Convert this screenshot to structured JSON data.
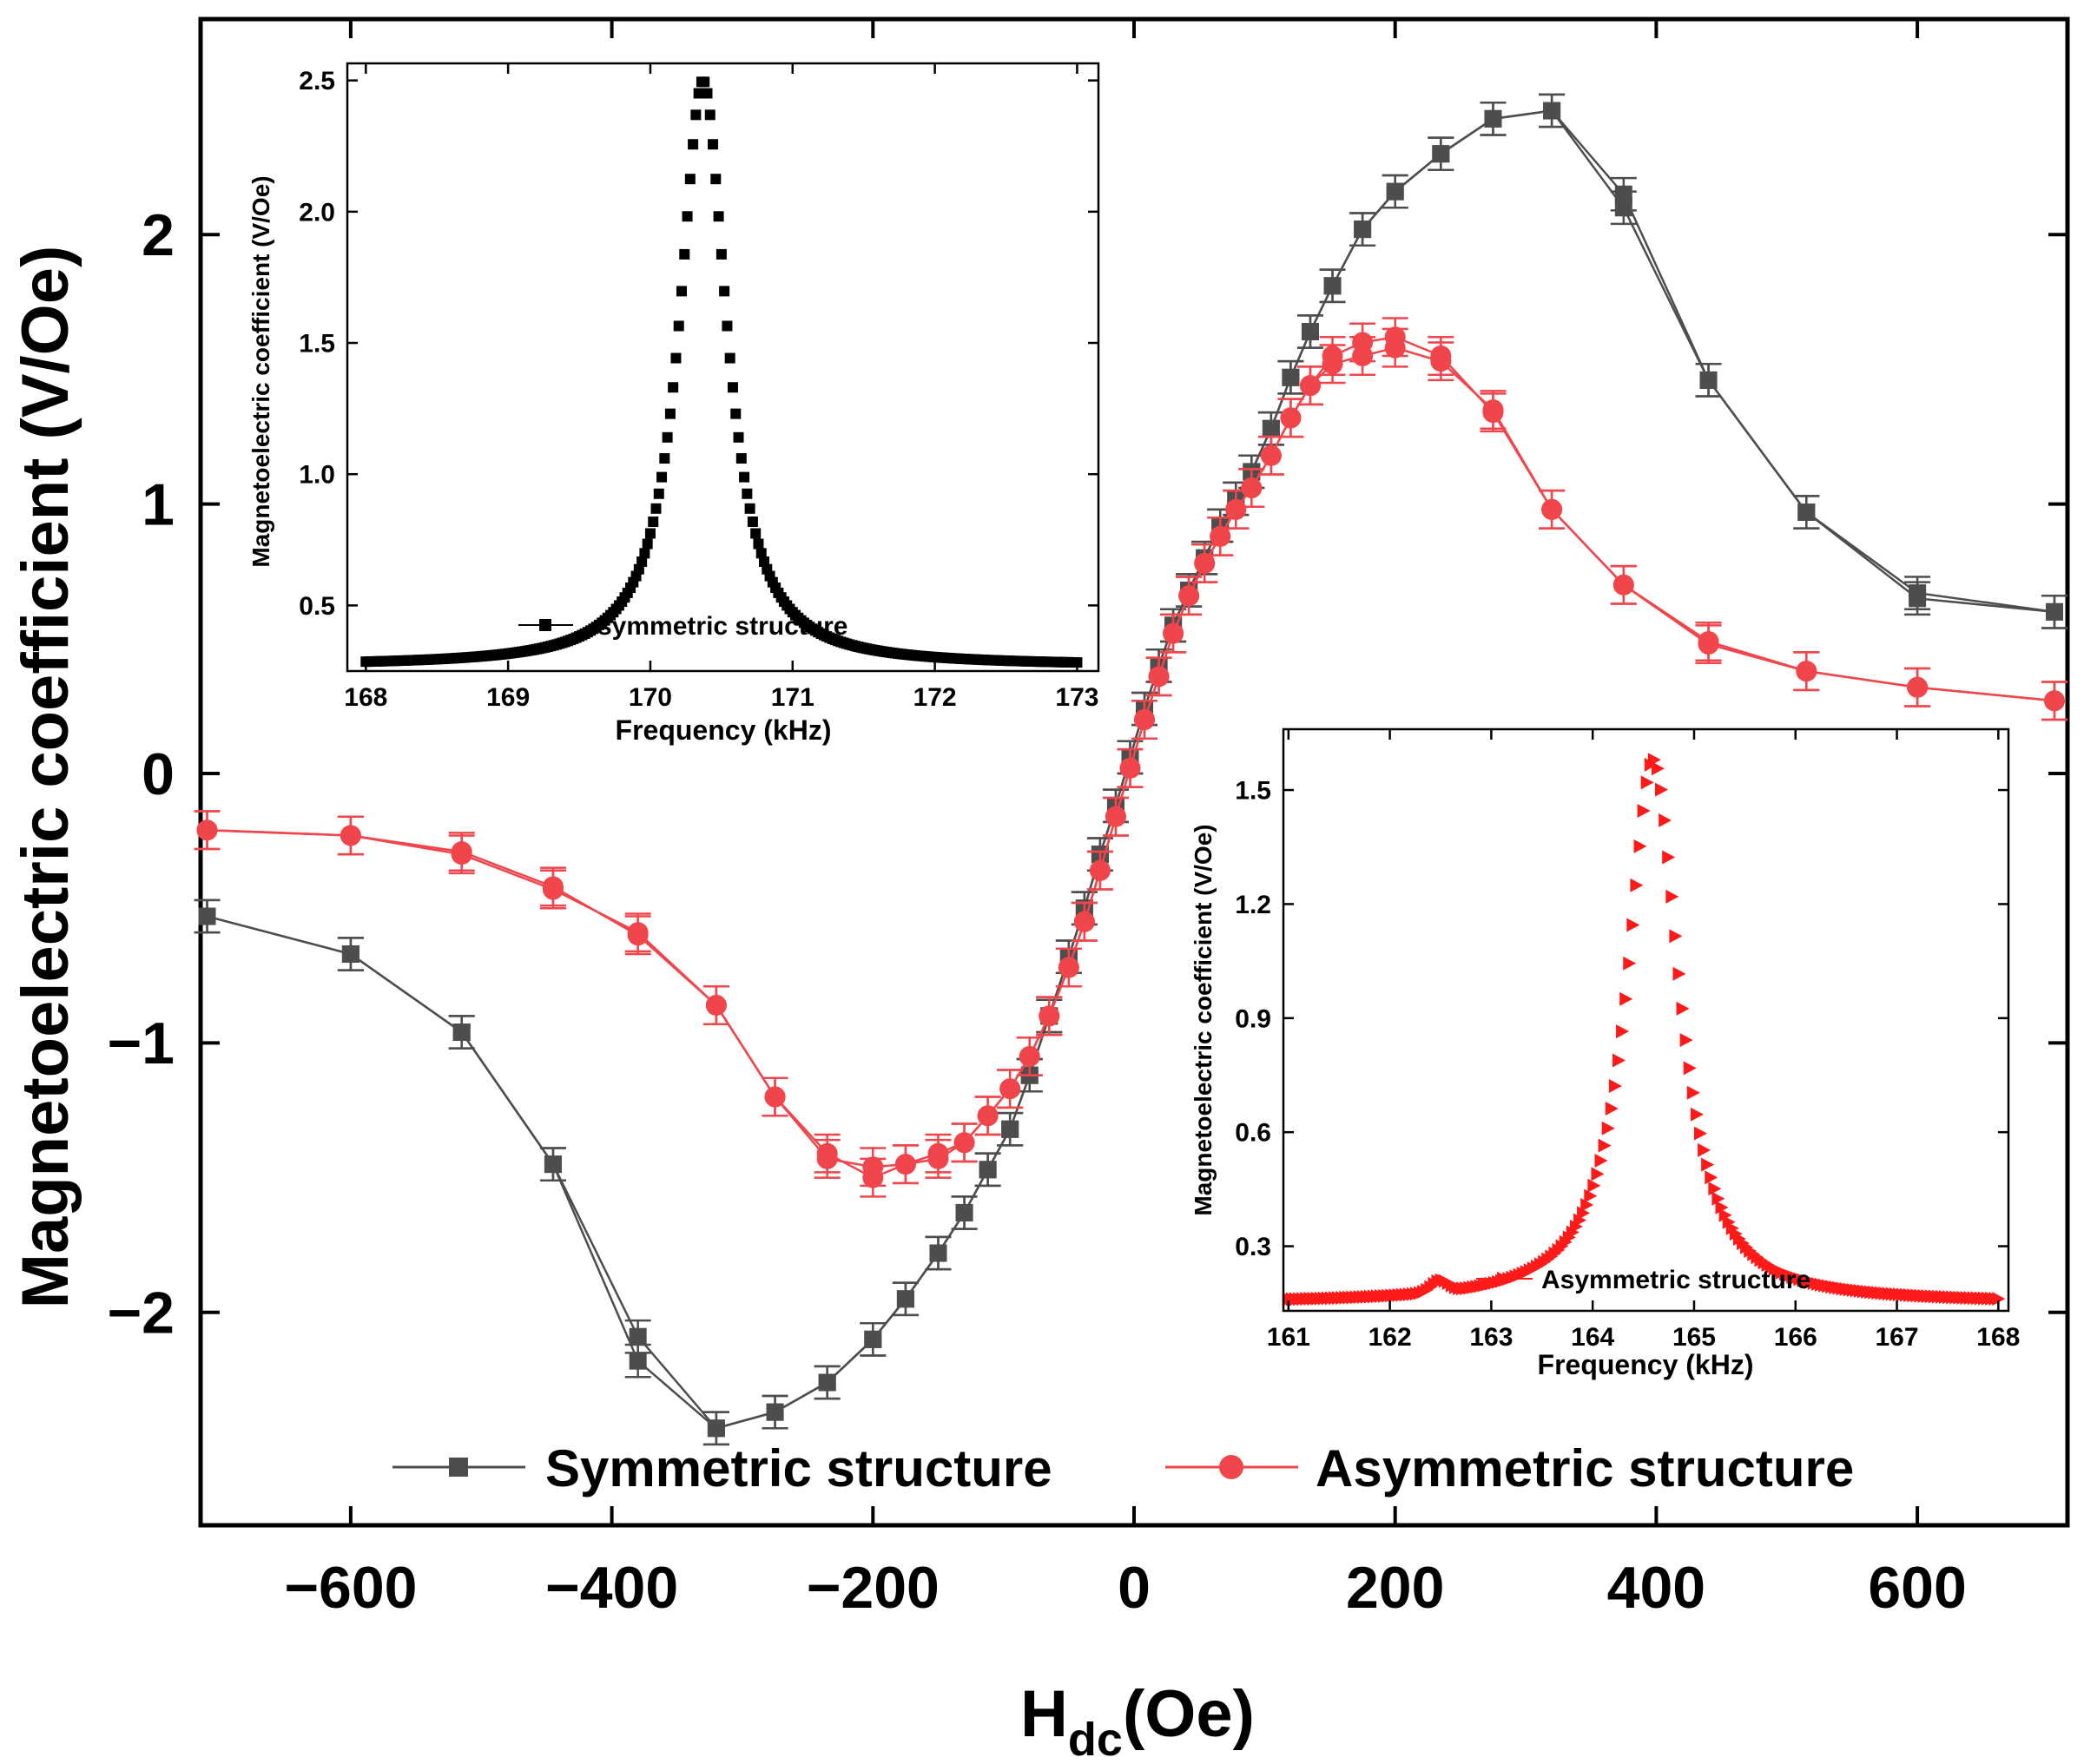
{
  "chart_data": [
    {
      "id": "main",
      "type": "line",
      "title": "",
      "xlabel": "H",
      "xlabel_sub": "dc",
      "xlabel_suffix": "(Oe)",
      "ylabel": "Magnetoelectric coefficient (V/Oe)",
      "xlim": [
        -715,
        715
      ],
      "ylim": [
        -2.79,
        2.8
      ],
      "xticks": [
        -600,
        -400,
        -200,
        0,
        200,
        400,
        600
      ],
      "xtick_labels": [
        "−600",
        "−400",
        "−200",
        "0",
        "200",
        "400",
        "600"
      ],
      "yticks": [
        -2,
        -1,
        0,
        1,
        2
      ],
      "ytick_labels": [
        "−2",
        "−1",
        "0",
        "1",
        "2"
      ],
      "legend": {
        "placement": "bottom-center",
        "entries": [
          "Symmetric structure",
          "Asymmetric structure"
        ]
      },
      "series": [
        {
          "name": "Symmetric structure",
          "color": "#4d4d4d",
          "marker": "square",
          "error": 0.06,
          "x": [
            -710,
            -600,
            -515,
            -445,
            -380,
            -320,
            -275,
            -235,
            -200,
            -175,
            -150,
            -130,
            -112,
            -95,
            -80,
            -65,
            -50,
            -38,
            -26,
            -14,
            -3,
            8,
            19,
            30,
            42,
            54,
            66,
            78,
            90,
            105,
            120,
            135,
            152,
            175,
            200,
            235,
            275,
            320,
            375,
            440,
            515,
            600,
            705
          ],
          "y": [
            -0.53,
            -0.67,
            -0.96,
            -1.45,
            -2.09,
            -2.43,
            -2.37,
            -2.26,
            -2.1,
            -1.95,
            -1.78,
            -1.63,
            -1.47,
            -1.32,
            -1.12,
            -0.9,
            -0.68,
            -0.5,
            -0.3,
            -0.12,
            0.06,
            0.24,
            0.4,
            0.55,
            0.68,
            0.8,
            0.92,
            1.02,
            1.12,
            1.28,
            1.47,
            1.64,
            1.81,
            2.02,
            2.16,
            2.3,
            2.43,
            2.46,
            2.15,
            1.46,
            0.97,
            0.67,
            0.6
          ],
          "y_return": [
            -0.53,
            -0.67,
            -0.96,
            -1.45,
            -2.18,
            -2.43,
            -2.37,
            -2.26,
            -2.1,
            -1.95,
            -1.78,
            -1.63,
            -1.47,
            -1.32,
            -1.12,
            -0.9,
            -0.68,
            -0.5,
            -0.3,
            -0.12,
            0.06,
            0.24,
            0.4,
            0.55,
            0.68,
            0.8,
            0.92,
            1.02,
            1.12,
            1.28,
            1.47,
            1.64,
            1.81,
            2.02,
            2.16,
            2.3,
            2.43,
            2.46,
            2.1,
            1.46,
            0.97,
            0.65,
            0.6
          ]
        },
        {
          "name": "Asymmetric structure",
          "color": "#f0454a",
          "marker": "circle",
          "error": 0.07,
          "x": [
            -710,
            -600,
            -515,
            -445,
            -380,
            -320,
            -275,
            -235,
            -200,
            -175,
            -150,
            -130,
            -112,
            -95,
            -80,
            -65,
            -50,
            -38,
            -26,
            -14,
            -3,
            8,
            19,
            30,
            42,
            54,
            66,
            78,
            90,
            105,
            120,
            135,
            152,
            175,
            200,
            235,
            275,
            320,
            375,
            440,
            515,
            600,
            705
          ],
          "y": [
            -0.21,
            -0.23,
            -0.29,
            -0.42,
            -0.6,
            -0.86,
            -1.2,
            -1.43,
            -1.46,
            -1.45,
            -1.43,
            -1.37,
            -1.27,
            -1.17,
            -1.05,
            -0.9,
            -0.72,
            -0.55,
            -0.36,
            -0.16,
            0.02,
            0.2,
            0.36,
            0.52,
            0.66,
            0.78,
            0.88,
            0.98,
            1.06,
            1.18,
            1.32,
            1.44,
            1.55,
            1.6,
            1.62,
            1.55,
            1.34,
            0.98,
            0.7,
            0.49,
            0.38,
            0.32,
            0.27
          ],
          "y_return": [
            -0.21,
            -0.23,
            -0.3,
            -0.43,
            -0.59,
            -0.86,
            -1.2,
            -1.41,
            -1.5,
            -1.45,
            -1.41,
            -1.37,
            -1.27,
            -1.17,
            -1.05,
            -0.9,
            -0.72,
            -0.55,
            -0.36,
            -0.16,
            0.02,
            0.2,
            0.36,
            0.52,
            0.66,
            0.78,
            0.88,
            0.98,
            1.06,
            1.18,
            1.32,
            1.44,
            1.52,
            1.55,
            1.58,
            1.53,
            1.35,
            0.98,
            0.7,
            0.48,
            0.38,
            0.32,
            0.27
          ]
        }
      ]
    },
    {
      "id": "inset1",
      "type": "line",
      "title": "",
      "xlabel": "Frequency (kHz)",
      "ylabel": "Magnetoelectric coefficient (V/Oe)",
      "xlim": [
        167.87,
        173.15
      ],
      "ylim": [
        0.25,
        2.565
      ],
      "xticks": [
        168,
        169,
        170,
        171,
        172,
        173
      ],
      "xtick_labels": [
        "168",
        "169",
        "170",
        "171",
        "172",
        "173"
      ],
      "yticks": [
        0.5,
        1.0,
        1.5,
        2.0,
        2.5
      ],
      "ytick_labels": [
        "0.5",
        "1.0",
        "1.5",
        "2.0",
        "2.5"
      ],
      "legend": {
        "placement": "bottom-center",
        "entries": [
          "symmetric structure"
        ]
      },
      "series": [
        {
          "name": "symmetric structure",
          "color": "#000000",
          "marker": "square",
          "start": 168.0,
          "end": 173.0,
          "step": 0.02,
          "f0": 170.37,
          "width": 0.4,
          "peak": 2.5,
          "base": 0.27,
          "bump": null
        }
      ]
    },
    {
      "id": "inset2",
      "type": "line",
      "title": "",
      "xlabel": "Frequency (kHz)",
      "ylabel": "Magnetoelectric coefficient (V/Oe)",
      "xlim": [
        160.95,
        168.1
      ],
      "ylim": [
        0.13,
        1.66
      ],
      "xticks": [
        161,
        162,
        163,
        164,
        165,
        166,
        167,
        168
      ],
      "xtick_labels": [
        "161",
        "162",
        "163",
        "164",
        "165",
        "166",
        "167",
        "168"
      ],
      "yticks": [
        0.3,
        0.6,
        0.9,
        1.2,
        1.5
      ],
      "ytick_labels": [
        "0.3",
        "0.6",
        "0.9",
        "1.2",
        "1.5"
      ],
      "legend": {
        "placement": "bottom-center",
        "entries": [
          "Asymmetric structure"
        ]
      },
      "series": [
        {
          "name": "Asymmetric structure",
          "color": "#ff1a1a",
          "marker": "triangle-right",
          "start": 161.0,
          "end": 168.0,
          "step": 0.035,
          "f0": 164.6,
          "width": 0.62,
          "peak": 1.58,
          "base": 0.15,
          "bump": {
            "center": 162.5,
            "sigma": 0.12,
            "amp": 0.03
          }
        }
      ]
    }
  ]
}
